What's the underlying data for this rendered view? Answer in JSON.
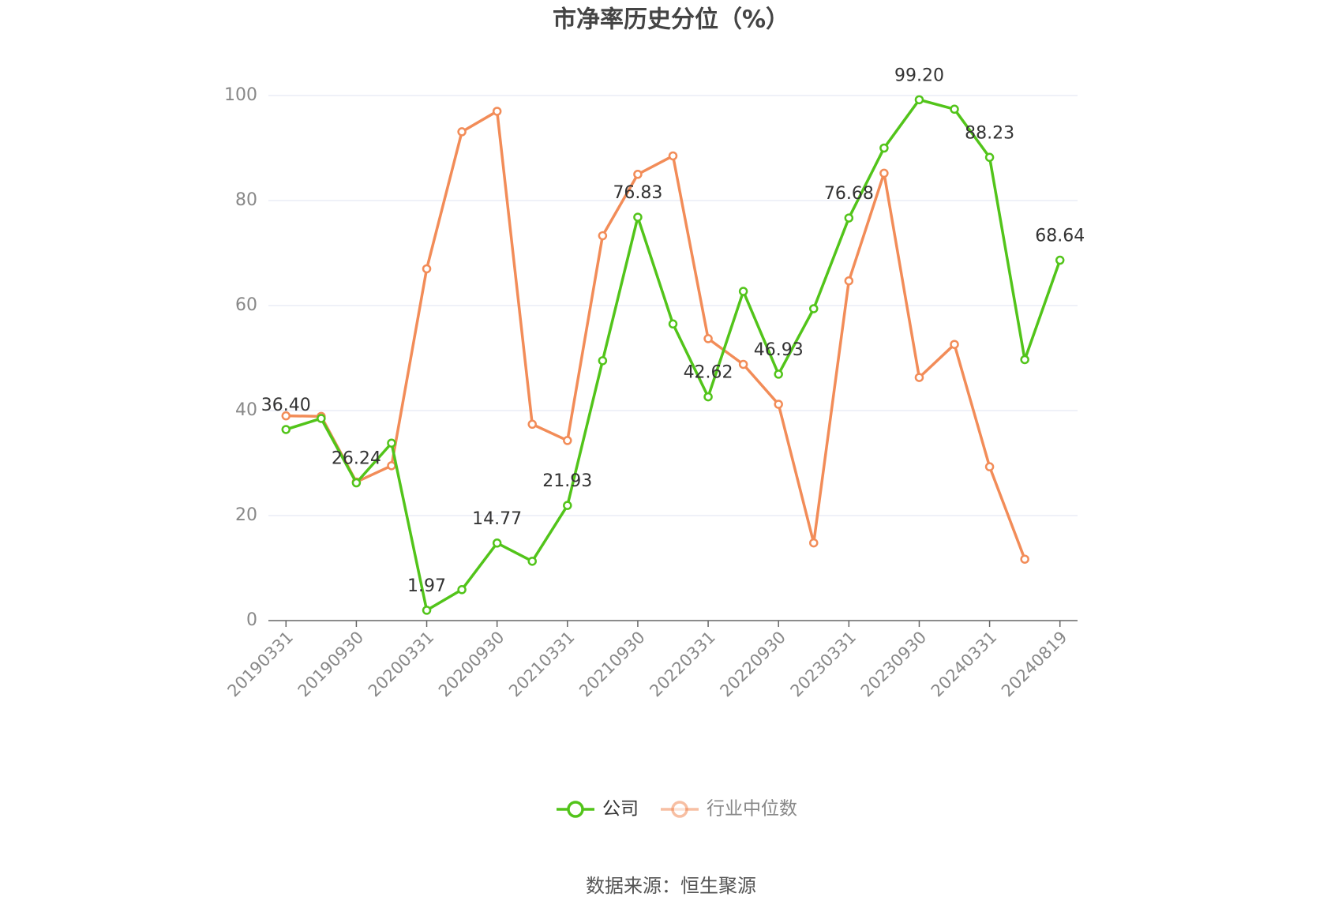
{
  "chart_data": {
    "type": "line",
    "title": "市净率历史分位（%）",
    "categories": [
      "20190331",
      null,
      "20190930",
      null,
      "20200331",
      null,
      "20200930",
      null,
      "20210331",
      null,
      "20210930",
      null,
      "20220331",
      null,
      "20220930",
      null,
      "20230331",
      null,
      "20230930",
      null,
      "20240331",
      null,
      "20240819"
    ],
    "series": [
      {
        "name": "公司",
        "color": "#52c41a",
        "values": [
          36.4,
          38.5,
          26.24,
          33.8,
          1.97,
          5.9,
          14.77,
          11.3,
          21.93,
          49.5,
          76.83,
          56.5,
          42.62,
          62.7,
          46.93,
          59.4,
          76.68,
          90.0,
          99.2,
          97.4,
          88.23,
          49.7,
          68.64
        ],
        "value_labels": [
          "36.40",
          null,
          "26.24",
          null,
          "1.97",
          null,
          "14.77",
          null,
          "21.93",
          null,
          "76.83",
          null,
          "42.62",
          null,
          "46.93",
          null,
          "76.68",
          null,
          "99.20",
          null,
          "88.23",
          null,
          "68.64"
        ]
      },
      {
        "name": "行业中位数",
        "color": "#f28c58",
        "values": [
          39.0,
          38.9,
          26.4,
          29.5,
          67.0,
          93.1,
          97.0,
          37.4,
          34.3,
          73.3,
          85.0,
          88.5,
          53.7,
          48.8,
          41.2,
          14.8,
          64.7,
          85.2,
          46.3,
          52.6,
          29.3,
          11.7,
          null
        ]
      }
    ],
    "ylim": [
      0,
      100
    ],
    "yticks": [
      0,
      20,
      40,
      60,
      80,
      100
    ],
    "grid": true,
    "legend": "bottom",
    "source": "数据来源：恒生聚源"
  }
}
